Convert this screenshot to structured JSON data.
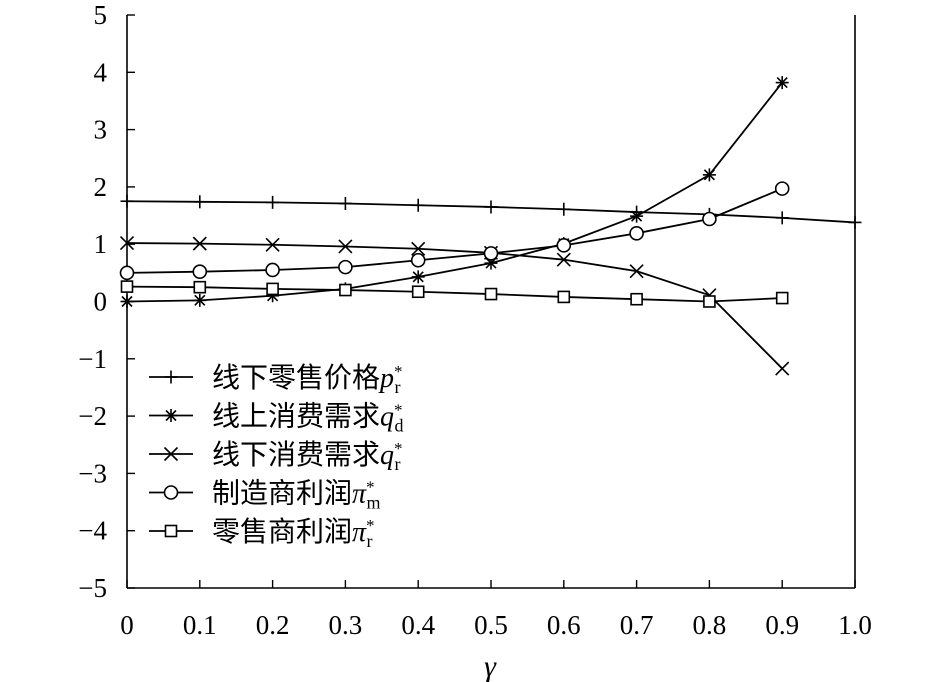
{
  "chart_data": {
    "type": "line",
    "title": "",
    "xlabel": "γ",
    "ylabel": "",
    "xlim": [
      0,
      1.0
    ],
    "ylim": [
      -5,
      5
    ],
    "x_ticks": [
      "0",
      "0.1",
      "0.2",
      "0.3",
      "0.4",
      "0.5",
      "0.6",
      "0.7",
      "0.8",
      "0.9",
      "1.0"
    ],
    "y_ticks": [
      "5",
      "4",
      "3",
      "2",
      "1",
      "0",
      "−1",
      "−2",
      "−3",
      "−4",
      "−5"
    ],
    "grid": false,
    "legend_position": "bottom-left",
    "series": [
      {
        "marker": "plus",
        "legend_text": "线下零售价格",
        "legend_math": "p",
        "legend_sub": "r",
        "legend_sup": "*",
        "x": [
          0,
          0.1,
          0.2,
          0.3,
          0.4,
          0.5,
          0.6,
          0.7,
          0.8,
          0.9,
          1.0
        ],
        "values": [
          1.75,
          1.74,
          1.73,
          1.71,
          1.68,
          1.65,
          1.61,
          1.56,
          1.52,
          1.46,
          1.38
        ]
      },
      {
        "marker": "asterisk",
        "legend_text": "线上消费需求",
        "legend_math": "q",
        "legend_sub": "d",
        "legend_sup": "*",
        "x": [
          0,
          0.1,
          0.2,
          0.3,
          0.4,
          0.5,
          0.6,
          0.7,
          0.8,
          0.9
        ],
        "values": [
          0.0,
          0.02,
          0.1,
          0.22,
          0.43,
          0.67,
          1.01,
          1.49,
          2.21,
          3.82
        ]
      },
      {
        "marker": "cross",
        "legend_text": "线下消费需求",
        "legend_math": "q",
        "legend_sub": "r",
        "legend_sup": "*",
        "x": [
          0,
          0.1,
          0.2,
          0.3,
          0.4,
          0.5,
          0.6,
          0.7,
          0.8,
          0.9
        ],
        "values": [
          1.02,
          1.01,
          0.99,
          0.96,
          0.92,
          0.85,
          0.73,
          0.53,
          0.11,
          -1.17
        ]
      },
      {
        "marker": "circle",
        "legend_text": "制造商利润",
        "legend_math": "π",
        "legend_sub": "m",
        "legend_sup": "*",
        "x": [
          0,
          0.1,
          0.2,
          0.3,
          0.4,
          0.5,
          0.6,
          0.7,
          0.8,
          0.9
        ],
        "values": [
          0.5,
          0.52,
          0.55,
          0.6,
          0.72,
          0.84,
          0.98,
          1.19,
          1.44,
          1.97
        ]
      },
      {
        "marker": "square",
        "legend_text": "零售商利润",
        "legend_math": "π",
        "legend_sub": "r",
        "legend_sup": "*",
        "x": [
          0,
          0.1,
          0.2,
          0.3,
          0.4,
          0.5,
          0.6,
          0.7,
          0.8,
          0.9
        ],
        "values": [
          0.26,
          0.25,
          0.22,
          0.2,
          0.17,
          0.13,
          0.08,
          0.04,
          0.0,
          0.06
        ]
      }
    ]
  }
}
